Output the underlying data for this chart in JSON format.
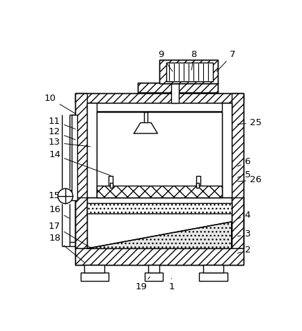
{
  "bg_color": "#ffffff",
  "lc": "#000000",
  "lw": 1.0,
  "figsize": [
    4.35,
    4.76
  ],
  "dpi": 100,
  "labels_annot": {
    "1": [
      248,
      462,
      248,
      442
    ],
    "2": [
      390,
      393,
      368,
      400
    ],
    "3": [
      390,
      363,
      368,
      368
    ],
    "4": [
      390,
      328,
      368,
      335
    ],
    "5": [
      390,
      252,
      368,
      258
    ],
    "6": [
      390,
      228,
      368,
      238
    ],
    "7": [
      362,
      28,
      330,
      62
    ],
    "8": [
      290,
      28,
      285,
      60
    ],
    "9": [
      228,
      28,
      252,
      62
    ],
    "10": [
      22,
      110,
      72,
      140
    ],
    "11": [
      30,
      152,
      72,
      168
    ],
    "12": [
      30,
      172,
      72,
      188
    ],
    "13": [
      30,
      192,
      100,
      200
    ],
    "14": [
      30,
      215,
      138,
      255
    ],
    "15": [
      30,
      292,
      48,
      292
    ],
    "16": [
      30,
      318,
      60,
      335
    ],
    "17": [
      30,
      348,
      100,
      390
    ],
    "18": [
      30,
      370,
      88,
      418
    ],
    "19": [
      192,
      462,
      210,
      440
    ],
    "25": [
      405,
      155,
      368,
      158
    ],
    "26": [
      405,
      262,
      368,
      265
    ]
  }
}
